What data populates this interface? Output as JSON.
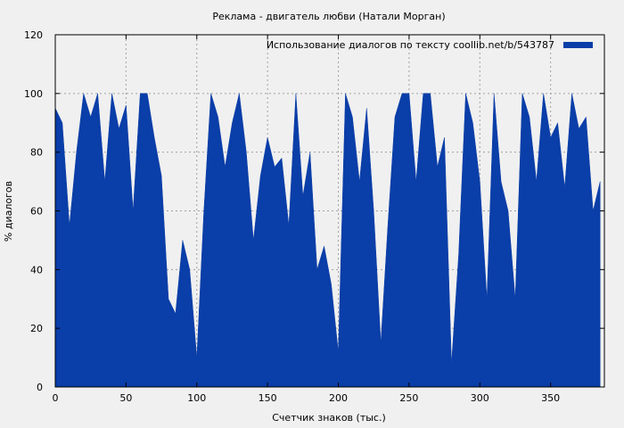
{
  "chart_data": {
    "type": "area",
    "title": "Реклама - двигатель любви (Натали Морган)",
    "xlabel": "Счетчик знаков (тыс.)",
    "ylabel": "% диалогов",
    "xlim": [
      0,
      388
    ],
    "ylim": [
      0,
      120
    ],
    "xticks": [
      0,
      50,
      100,
      150,
      200,
      250,
      300,
      350
    ],
    "yticks": [
      0,
      20,
      40,
      60,
      80,
      100,
      120
    ],
    "grid": true,
    "legend_position": "top-right",
    "series": [
      {
        "name": "Использование диалогов по тексту  coollib.net/b/543787",
        "color": "#0a3ea8",
        "x": [
          0,
          5,
          10,
          15,
          20,
          25,
          30,
          35,
          40,
          45,
          50,
          55,
          60,
          65,
          70,
          75,
          80,
          85,
          90,
          95,
          100,
          105,
          110,
          115,
          120,
          125,
          130,
          135,
          140,
          145,
          150,
          155,
          160,
          165,
          170,
          175,
          180,
          185,
          190,
          195,
          200,
          205,
          210,
          215,
          220,
          225,
          230,
          235,
          240,
          245,
          250,
          255,
          260,
          265,
          270,
          275,
          280,
          285,
          290,
          295,
          300,
          305,
          310,
          315,
          320,
          325,
          330,
          335,
          340,
          345,
          350,
          355,
          360,
          365,
          370,
          375,
          380,
          385
        ],
        "values": [
          95,
          90,
          55,
          80,
          100,
          92,
          100,
          70,
          100,
          88,
          96,
          60,
          100,
          100,
          85,
          72,
          30,
          25,
          50,
          40,
          10,
          60,
          100,
          92,
          75,
          90,
          100,
          80,
          50,
          72,
          85,
          75,
          78,
          55,
          100,
          65,
          80,
          40,
          48,
          35,
          12,
          100,
          92,
          70,
          95,
          60,
          15,
          55,
          92,
          100,
          100,
          70,
          100,
          100,
          75,
          85,
          8,
          45,
          100,
          90,
          70,
          30,
          100,
          70,
          60,
          30,
          100,
          92,
          70,
          100,
          85,
          90,
          68,
          100,
          88,
          92,
          60,
          70
        ]
      }
    ]
  }
}
